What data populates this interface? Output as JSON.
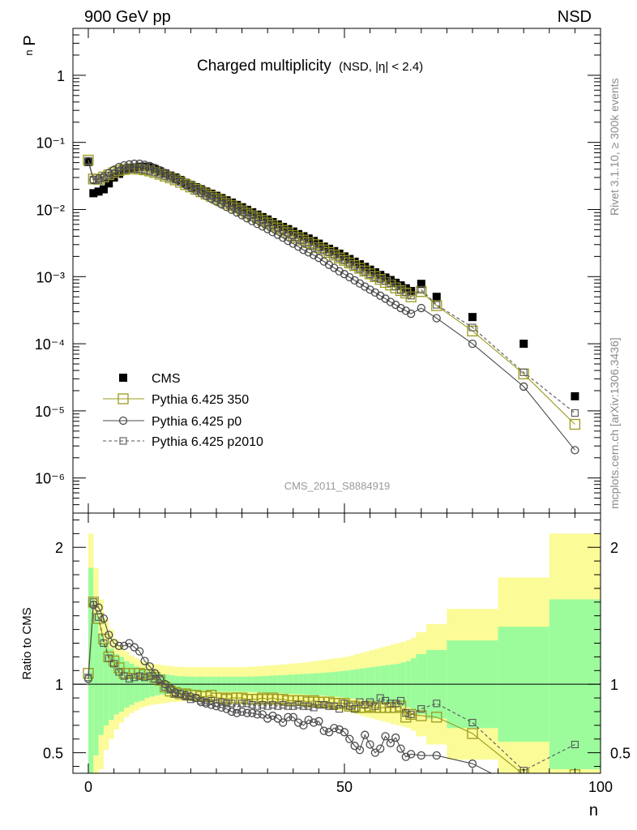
{
  "header": {
    "left": "900 GeV pp",
    "right": "NSD"
  },
  "side_labels": {
    "rivet": "Rivet 3.1.10, ≥ 300k events",
    "mcplots": "mcplots.cern.ch [arXiv:1306.3436]"
  },
  "chart_data": {
    "type": "scatter",
    "title": "Charged multiplicity",
    "title_suffix": "(NSD, |η| < 2.4)",
    "analysis_id": "CMS_2011_S8884919",
    "ylabel_main": "P",
    "ylabel_main_sub": "n",
    "ylabel_ratio": "Ratio to CMS",
    "xlabel": "n",
    "ylog_main": true,
    "xlim": [
      -3,
      100
    ],
    "ylim_main": [
      3e-07,
      5
    ],
    "ylim_ratio": [
      0.35,
      2.25
    ],
    "x_ticks": [
      "0",
      "50",
      "100"
    ],
    "y_ticks_main": [
      "1",
      "10⁻¹",
      "10⁻²",
      "10⁻³",
      "10⁻⁴",
      "10⁻⁵",
      "10⁻⁶"
    ],
    "y_ticks_ratio": [
      "2",
      "1",
      "0.5"
    ],
    "legend_position": "bottom-left",
    "colors": {
      "cms": "#000000",
      "p350": "#9a9a1e",
      "p0": "#4a4a4a",
      "p2010": "#555555",
      "band_inner": "#9cfc9c",
      "band_outer": "#fbfb98"
    },
    "series": [
      {
        "name": "CMS",
        "marker": "filled-square",
        "x": [
          0,
          1,
          2,
          3,
          4,
          5,
          6,
          7,
          8,
          9,
          10,
          11,
          12,
          13,
          14,
          15,
          16,
          17,
          18,
          19,
          20,
          21,
          22,
          23,
          24,
          25,
          26,
          27,
          28,
          29,
          30,
          31,
          32,
          33,
          34,
          35,
          36,
          37,
          38,
          39,
          40,
          41,
          42,
          43,
          44,
          45,
          46,
          47,
          48,
          49,
          50,
          51,
          52,
          53,
          54,
          55,
          56,
          57,
          58,
          59,
          60,
          61,
          62,
          63,
          65,
          68,
          75,
          85,
          95
        ],
        "y": [
          0.051,
          0.0175,
          0.0185,
          0.02,
          0.0245,
          0.03,
          0.034,
          0.038,
          0.041,
          0.0425,
          0.0435,
          0.0435,
          0.0425,
          0.04,
          0.037,
          0.0345,
          0.032,
          0.03,
          0.0275,
          0.025,
          0.0232,
          0.0215,
          0.02,
          0.0185,
          0.0172,
          0.016,
          0.0148,
          0.0137,
          0.0127,
          0.0117,
          0.0108,
          0.0099,
          0.0091,
          0.0084,
          0.0077,
          0.0071,
          0.0065,
          0.006,
          0.0055,
          0.0051,
          0.0047,
          0.0043,
          0.004,
          0.0037,
          0.0034,
          0.0031,
          0.0028,
          0.0026,
          0.0024,
          0.0022,
          0.002,
          0.00183,
          0.00167,
          0.00153,
          0.0014,
          0.00127,
          0.00116,
          0.00106,
          0.00097,
          0.00089,
          0.00081,
          0.00074,
          0.00067,
          0.00061,
          0.00078,
          0.0005,
          0.00025,
          0.0001,
          1.65e-05
        ]
      },
      {
        "name": "Pythia 6.425 350",
        "marker": "open-square",
        "line": "solid",
        "x": [
          0,
          1,
          2,
          3,
          4,
          5,
          6,
          7,
          8,
          9,
          10,
          11,
          12,
          13,
          14,
          15,
          16,
          17,
          18,
          19,
          20,
          21,
          22,
          23,
          24,
          25,
          26,
          27,
          28,
          29,
          30,
          31,
          32,
          33,
          34,
          35,
          36,
          37,
          38,
          39,
          40,
          41,
          42,
          43,
          44,
          45,
          46,
          47,
          48,
          49,
          50,
          51,
          52,
          53,
          54,
          55,
          56,
          57,
          58,
          59,
          60,
          61,
          62,
          63,
          65,
          68,
          75,
          85,
          95
        ],
        "y": [
          0.0545,
          0.0285,
          0.0282,
          0.0305,
          0.033,
          0.0355,
          0.038,
          0.0395,
          0.0405,
          0.0405,
          0.04,
          0.039,
          0.0375,
          0.0355,
          0.0335,
          0.0315,
          0.0296,
          0.0276,
          0.0255,
          0.0235,
          0.0217,
          0.02,
          0.0184,
          0.017,
          0.0157,
          0.0145,
          0.0134,
          0.0123,
          0.0114,
          0.0105,
          0.0096,
          0.0088,
          0.0081,
          0.0075,
          0.0069,
          0.0063,
          0.0058,
          0.0053,
          0.0049,
          0.0045,
          0.0041,
          0.0038,
          0.0035,
          0.0032,
          0.003,
          0.0027,
          0.0025,
          0.0023,
          0.0021,
          0.0019,
          0.00175,
          0.0016,
          0.00146,
          0.00133,
          0.00121,
          0.0011,
          0.001,
          0.00091,
          0.00082,
          0.00075,
          0.00068,
          0.00062,
          0.00057,
          0.0005,
          0.0006,
          0.00037,
          0.000155,
          3.55e-05,
          6.3e-06
        ]
      },
      {
        "name": "Pythia 6.425 p0",
        "marker": "open-circle",
        "line": "solid",
        "x": [
          0,
          1,
          2,
          3,
          4,
          5,
          6,
          7,
          8,
          9,
          10,
          11,
          12,
          13,
          14,
          15,
          16,
          17,
          18,
          19,
          20,
          21,
          22,
          23,
          24,
          25,
          26,
          27,
          28,
          29,
          30,
          31,
          32,
          33,
          34,
          35,
          36,
          37,
          38,
          39,
          40,
          41,
          42,
          43,
          44,
          45,
          46,
          47,
          48,
          49,
          50,
          51,
          52,
          53,
          54,
          55,
          56,
          57,
          58,
          59,
          60,
          61,
          62,
          63,
          65,
          68,
          75,
          85,
          95
        ],
        "y": [
          0.052,
          0.0275,
          0.029,
          0.031,
          0.035,
          0.039,
          0.043,
          0.0455,
          0.047,
          0.048,
          0.048,
          0.0465,
          0.0445,
          0.0415,
          0.0385,
          0.035,
          0.032,
          0.0288,
          0.026,
          0.0233,
          0.0212,
          0.0193,
          0.0176,
          0.016,
          0.0145,
          0.0132,
          0.012,
          0.0109,
          0.0099,
          0.009,
          0.0082,
          0.0074,
          0.0067,
          0.0061,
          0.0056,
          0.0051,
          0.0046,
          0.0042,
          0.0038,
          0.0034,
          0.0031,
          0.0028,
          0.0025,
          0.0023,
          0.0021,
          0.0019,
          0.00168,
          0.0015,
          0.00135,
          0.0012,
          0.00109,
          0.00098,
          0.00088,
          0.00079,
          0.00071,
          0.00064,
          0.00058,
          0.00052,
          0.00047,
          0.00042,
          0.00038,
          0.00034,
          0.00031,
          0.00028,
          0.00034,
          0.00024,
          0.0001,
          2.3e-05,
          2.6e-06
        ]
      },
      {
        "name": "Pythia 6.425 p2010",
        "marker": "open-square-small",
        "line": "dashed",
        "x": [
          0,
          1,
          2,
          3,
          4,
          5,
          6,
          7,
          8,
          9,
          10,
          11,
          12,
          13,
          14,
          15,
          16,
          17,
          18,
          19,
          20,
          21,
          22,
          23,
          24,
          25,
          26,
          27,
          28,
          29,
          30,
          31,
          32,
          33,
          34,
          35,
          36,
          37,
          38,
          39,
          40,
          41,
          42,
          43,
          44,
          45,
          46,
          47,
          48,
          49,
          50,
          51,
          52,
          53,
          54,
          55,
          56,
          57,
          58,
          59,
          60,
          61,
          62,
          63,
          65,
          68,
          75,
          85,
          95
        ],
        "y": [
          0.0535,
          0.028,
          0.0275,
          0.0295,
          0.032,
          0.0345,
          0.037,
          0.039,
          0.04,
          0.0402,
          0.0398,
          0.0388,
          0.0374,
          0.0355,
          0.0336,
          0.0316,
          0.0297,
          0.0277,
          0.0257,
          0.0238,
          0.022,
          0.0203,
          0.0187,
          0.0172,
          0.0158,
          0.0146,
          0.0135,
          0.0124,
          0.0114,
          0.0105,
          0.0097,
          0.0089,
          0.0082,
          0.0075,
          0.0069,
          0.0063,
          0.0058,
          0.0053,
          0.0049,
          0.0045,
          0.0041,
          0.0038,
          0.0035,
          0.0032,
          0.0029,
          0.0027,
          0.0025,
          0.0023,
          0.0021,
          0.0019,
          0.00175,
          0.00158,
          0.00144,
          0.00131,
          0.00119,
          0.00108,
          0.00098,
          0.00092,
          0.00086,
          0.0008,
          0.00071,
          0.00063,
          0.00058,
          0.00052,
          0.00064,
          0.00038,
          0.000175,
          3.75e-05,
          9.3e-06
        ]
      }
    ],
    "ratio_band": {
      "x_edges": [
        0,
        1,
        2,
        3,
        4,
        5,
        6,
        7,
        8,
        9,
        10,
        11,
        12,
        13,
        14,
        15,
        16,
        17,
        18,
        19,
        20,
        21,
        22,
        23,
        24,
        25,
        26,
        27,
        28,
        29,
        30,
        31,
        32,
        33,
        34,
        35,
        36,
        37,
        38,
        39,
        40,
        41,
        42,
        43,
        44,
        45,
        46,
        47,
        48,
        49,
        50,
        51,
        52,
        53,
        54,
        55,
        56,
        57,
        58,
        59,
        60,
        61,
        62,
        63,
        64,
        66,
        70,
        80,
        90,
        100
      ],
      "inner_half": [
        0.85,
        0.52,
        0.37,
        0.3,
        0.26,
        0.22,
        0.2,
        0.17,
        0.15,
        0.13,
        0.12,
        0.1,
        0.09,
        0.08,
        0.075,
        0.07,
        0.065,
        0.06,
        0.058,
        0.056,
        0.055,
        0.055,
        0.055,
        0.055,
        0.055,
        0.055,
        0.055,
        0.055,
        0.055,
        0.055,
        0.055,
        0.056,
        0.057,
        0.058,
        0.06,
        0.062,
        0.064,
        0.066,
        0.068,
        0.07,
        0.072,
        0.074,
        0.076,
        0.078,
        0.08,
        0.082,
        0.085,
        0.088,
        0.092,
        0.096,
        0.1,
        0.105,
        0.11,
        0.115,
        0.12,
        0.125,
        0.13,
        0.135,
        0.14,
        0.145,
        0.15,
        0.16,
        0.17,
        0.19,
        0.22,
        0.25,
        0.32,
        0.42,
        0.62
      ],
      "outer_half": [
        1.1,
        0.85,
        0.62,
        0.48,
        0.4,
        0.33,
        0.28,
        0.24,
        0.21,
        0.19,
        0.17,
        0.16,
        0.15,
        0.145,
        0.14,
        0.135,
        0.13,
        0.128,
        0.126,
        0.125,
        0.125,
        0.125,
        0.125,
        0.125,
        0.125,
        0.125,
        0.125,
        0.125,
        0.125,
        0.125,
        0.125,
        0.127,
        0.13,
        0.132,
        0.135,
        0.138,
        0.14,
        0.143,
        0.146,
        0.15,
        0.153,
        0.156,
        0.16,
        0.165,
        0.17,
        0.175,
        0.18,
        0.185,
        0.19,
        0.195,
        0.2,
        0.21,
        0.22,
        0.23,
        0.24,
        0.25,
        0.26,
        0.27,
        0.28,
        0.29,
        0.3,
        0.31,
        0.32,
        0.34,
        0.38,
        0.44,
        0.55,
        0.78,
        1.1
      ]
    },
    "ratio_series": [
      {
        "name": "Pythia 6.425 350",
        "x": [
          0,
          1,
          2,
          3,
          4,
          5,
          6,
          7,
          8,
          9,
          10,
          11,
          12,
          13,
          14,
          15,
          16,
          17,
          18,
          19,
          20,
          21,
          22,
          23,
          24,
          25,
          26,
          27,
          28,
          29,
          30,
          31,
          32,
          33,
          34,
          35,
          36,
          37,
          38,
          39,
          40,
          41,
          42,
          43,
          44,
          45,
          46,
          47,
          48,
          49,
          50,
          51,
          52,
          53,
          54,
          55,
          56,
          57,
          58,
          59,
          60,
          61,
          62,
          63,
          65,
          68,
          75,
          85,
          95
        ],
        "y": [
          1.08,
          1.6,
          1.48,
          1.33,
          1.2,
          1.17,
          1.12,
          1.08,
          1.08,
          1.08,
          1.08,
          1.07,
          1.07,
          1.05,
          1.03,
          0.98,
          0.95,
          0.94,
          0.93,
          0.93,
          0.92,
          0.92,
          0.91,
          0.91,
          0.92,
          0.9,
          0.9,
          0.89,
          0.9,
          0.9,
          0.9,
          0.89,
          0.89,
          0.89,
          0.9,
          0.89,
          0.9,
          0.89,
          0.89,
          0.88,
          0.88,
          0.88,
          0.88,
          0.87,
          0.88,
          0.87,
          0.87,
          0.87,
          0.86,
          0.86,
          0.86,
          0.84,
          0.84,
          0.83,
          0.83,
          0.84,
          0.83,
          0.83,
          0.83,
          0.83,
          0.83,
          0.84,
          0.76,
          0.78,
          0.77,
          0.76,
          0.64,
          0.34,
          0.34
        ]
      },
      {
        "name": "Pythia 6.425 p0",
        "x": [
          0,
          1,
          2,
          3,
          4,
          5,
          6,
          7,
          8,
          9,
          10,
          11,
          12,
          13,
          14,
          15,
          16,
          17,
          18,
          19,
          20,
          21,
          22,
          23,
          24,
          25,
          26,
          27,
          28,
          29,
          30,
          31,
          32,
          33,
          34,
          35,
          36,
          37,
          38,
          39,
          40,
          41,
          42,
          43,
          44,
          45,
          46,
          47,
          48,
          49,
          50,
          51,
          52,
          53,
          54,
          55,
          56,
          57,
          58,
          59,
          60,
          61,
          62,
          63,
          65,
          68,
          75,
          85,
          95
        ],
        "y": [
          1.04,
          1.58,
          1.56,
          1.48,
          1.36,
          1.3,
          1.28,
          1.28,
          1.3,
          1.27,
          1.24,
          1.17,
          1.13,
          1.08,
          1.04,
          1.0,
          0.97,
          0.94,
          0.93,
          0.92,
          0.91,
          0.9,
          0.87,
          0.86,
          0.85,
          0.84,
          0.83,
          0.82,
          0.8,
          0.79,
          0.8,
          0.79,
          0.79,
          0.78,
          0.78,
          0.75,
          0.77,
          0.75,
          0.72,
          0.76,
          0.76,
          0.72,
          0.7,
          0.74,
          0.72,
          0.73,
          0.66,
          0.65,
          0.68,
          0.67,
          0.65,
          0.6,
          0.55,
          0.52,
          0.63,
          0.56,
          0.5,
          0.53,
          0.62,
          0.57,
          0.61,
          0.53,
          0.47,
          0.49,
          0.48,
          0.48,
          0.42,
          0.23,
          0.16
        ]
      },
      {
        "name": "Pythia 6.425 p2010",
        "x": [
          0,
          1,
          2,
          3,
          4,
          5,
          6,
          7,
          8,
          9,
          10,
          11,
          12,
          13,
          14,
          15,
          16,
          17,
          18,
          19,
          20,
          21,
          22,
          23,
          24,
          25,
          26,
          27,
          28,
          29,
          30,
          31,
          32,
          33,
          34,
          35,
          36,
          37,
          38,
          39,
          40,
          41,
          42,
          43,
          44,
          45,
          46,
          47,
          48,
          49,
          50,
          51,
          52,
          53,
          54,
          55,
          56,
          57,
          58,
          59,
          60,
          61,
          62,
          63,
          65,
          68,
          75,
          85,
          95
        ],
        "y": [
          1.05,
          1.6,
          1.49,
          1.3,
          1.19,
          1.15,
          1.09,
          1.06,
          1.04,
          1.05,
          1.06,
          1.05,
          1.06,
          1.04,
          1.03,
          0.98,
          0.96,
          0.93,
          0.93,
          0.91,
          0.89,
          0.9,
          0.88,
          0.87,
          0.88,
          0.86,
          0.87,
          0.86,
          0.86,
          0.83,
          0.86,
          0.86,
          0.85,
          0.84,
          0.85,
          0.84,
          0.85,
          0.84,
          0.85,
          0.84,
          0.84,
          0.85,
          0.84,
          0.84,
          0.83,
          0.85,
          0.85,
          0.84,
          0.84,
          0.82,
          0.86,
          0.84,
          0.82,
          0.87,
          0.85,
          0.87,
          0.84,
          0.9,
          0.88,
          0.86,
          0.86,
          0.88,
          0.79,
          0.78,
          0.82,
          0.86,
          0.72,
          0.37,
          0.56
        ]
      }
    ]
  }
}
